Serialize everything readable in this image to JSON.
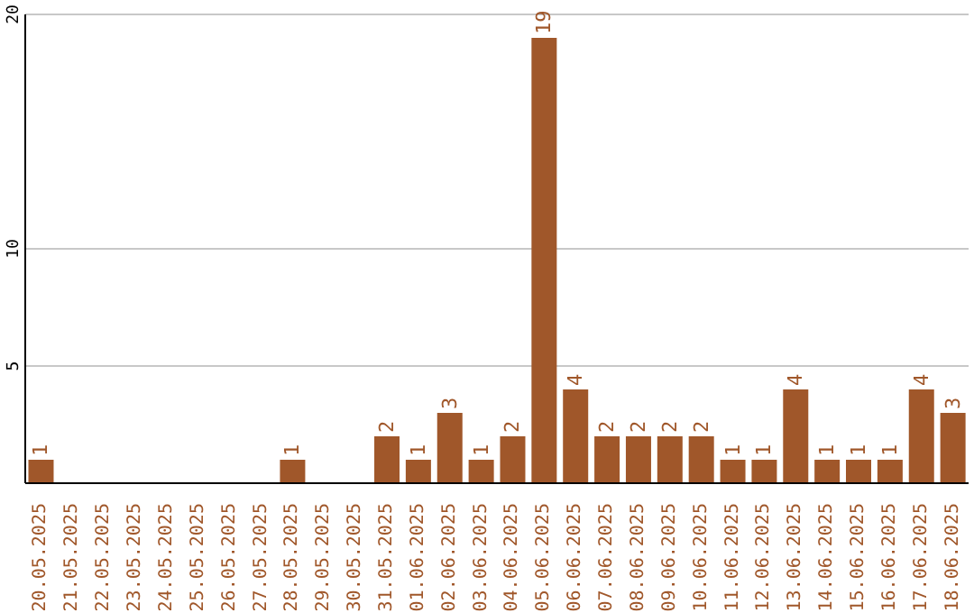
{
  "chart_data": {
    "type": "bar",
    "categories": [
      "20.05.2025",
      "21.05.2025",
      "22.05.2025",
      "23.05.2025",
      "24.05.2025",
      "25.05.2025",
      "26.05.2025",
      "27.05.2025",
      "28.05.2025",
      "29.05.2025",
      "30.05.2025",
      "31.05.2025",
      "01.06.2025",
      "02.06.2025",
      "03.06.2025",
      "04.06.2025",
      "05.06.2025",
      "06.06.2025",
      "07.06.2025",
      "08.06.2025",
      "09.06.2025",
      "10.06.2025",
      "11.06.2025",
      "12.06.2025",
      "13.06.2025",
      "14.06.2025",
      "15.06.2025",
      "16.06.2025",
      "17.06.2025",
      "18.06.2025"
    ],
    "values": [
      1,
      0,
      0,
      0,
      0,
      0,
      0,
      0,
      1,
      0,
      0,
      2,
      1,
      3,
      1,
      2,
      19,
      4,
      2,
      2,
      2,
      2,
      1,
      1,
      4,
      1,
      1,
      1,
      4,
      3
    ],
    "value_labels": [
      "1",
      null,
      null,
      null,
      null,
      null,
      null,
      null,
      "1",
      null,
      null,
      "2",
      "1",
      "3",
      "1",
      "2",
      "19",
      "4",
      "2",
      "2",
      "2",
      "2",
      "1",
      "1",
      "4",
      "1",
      "1",
      "1",
      "4",
      "3"
    ],
    "color": "#a0572a",
    "ylim": [
      0,
      20
    ],
    "yticks": [
      5,
      10,
      20
    ],
    "grid": "y"
  }
}
